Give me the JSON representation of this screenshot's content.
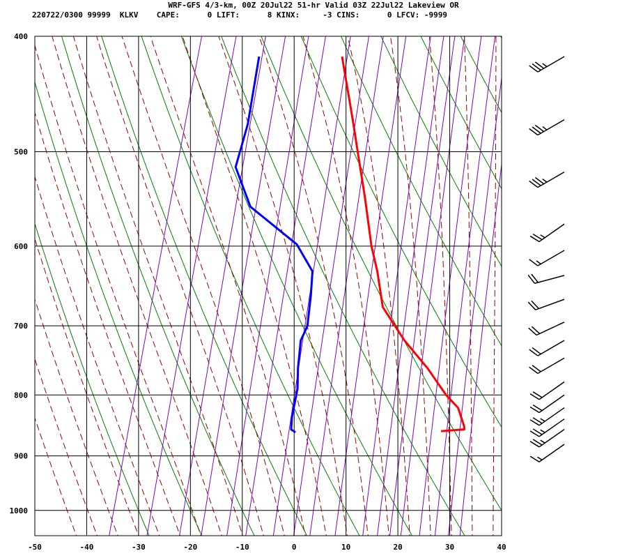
{
  "header": {
    "line1": "WRF-GFS 4/3-km, 00Z 20Jul22 51-hr Valid 03Z 22Jul22 Lakeview OR",
    "line2": "220722/0300 99999  KLKV    CAPE:      0 LIFT:      8 KINX:     -3 CINS:      0 LFCV: -9999"
  },
  "chart_data": {
    "type": "skew-t",
    "xlim": [
      -50,
      40
    ],
    "ylim": [
      1050,
      400
    ],
    "y_scale": "log",
    "x_ticks": [
      "-50",
      "-40",
      "-30",
      "-20",
      "-10",
      "0",
      "10",
      "20",
      "30",
      "40"
    ],
    "x_tick_values": [
      -50,
      -40,
      -30,
      -20,
      -10,
      0,
      10,
      20,
      30,
      40
    ],
    "y_ticks": [
      "400",
      "500",
      "600",
      "700",
      "800",
      "900",
      "1000"
    ],
    "y_tick_values": [
      400,
      500,
      600,
      700,
      800,
      900,
      1000
    ],
    "grid": true,
    "series": [
      {
        "key": "temperature",
        "color": "#ff0000",
        "points": [
          [
            858,
            24
          ],
          [
            855,
            28.4
          ],
          [
            850,
            28.2
          ],
          [
            820,
            26
          ],
          [
            800,
            23
          ],
          [
            760,
            18
          ],
          [
            720,
            12
          ],
          [
            675,
            6
          ],
          [
            630,
            3
          ],
          [
            600,
            0.5
          ],
          [
            545,
            -3.5
          ],
          [
            515,
            -6
          ],
          [
            470,
            -10
          ],
          [
            416,
            -15.5
          ]
        ]
      },
      {
        "key": "dewpoint",
        "color": "#0000ff",
        "points": [
          [
            860,
            -4
          ],
          [
            855,
            -5
          ],
          [
            835,
            -5.5
          ],
          [
            790,
            -6
          ],
          [
            760,
            -7
          ],
          [
            720,
            -8
          ],
          [
            700,
            -7.5
          ],
          [
            660,
            -8.5
          ],
          [
            630,
            -9.5
          ],
          [
            598,
            -14
          ],
          [
            556,
            -25
          ],
          [
            515,
            -30
          ],
          [
            474,
            -30
          ],
          [
            416,
            -31.5
          ]
        ]
      }
    ],
    "wind_barbs": [
      {
        "p": 416,
        "knots": 35,
        "dir": 240
      },
      {
        "p": 470,
        "knots": 35,
        "dir": 240
      },
      {
        "p": 520,
        "knots": 35,
        "dir": 240
      },
      {
        "p": 575,
        "knots": 25,
        "dir": 235
      },
      {
        "p": 605,
        "knots": 15,
        "dir": 240
      },
      {
        "p": 635,
        "knots": 20,
        "dir": 255
      },
      {
        "p": 665,
        "knots": 20,
        "dir": 250
      },
      {
        "p": 695,
        "knots": 20,
        "dir": 245
      },
      {
        "p": 720,
        "knots": 20,
        "dir": 240
      },
      {
        "p": 745,
        "knots": 20,
        "dir": 240
      },
      {
        "p": 780,
        "knots": 20,
        "dir": 235
      },
      {
        "p": 800,
        "knots": 20,
        "dir": 235
      },
      {
        "p": 820,
        "knots": 25,
        "dir": 235
      },
      {
        "p": 838,
        "knots": 25,
        "dir": 235
      },
      {
        "p": 855,
        "knots": 25,
        "dir": 235
      },
      {
        "p": 880,
        "knots": 15,
        "dir": 235
      }
    ],
    "background_lines": {
      "dry_adiabat_color": "#008000",
      "moist_adiabat_color": "#990000",
      "mixing_ratio_color": "#8000c0",
      "grid_color": "#000000"
    }
  }
}
